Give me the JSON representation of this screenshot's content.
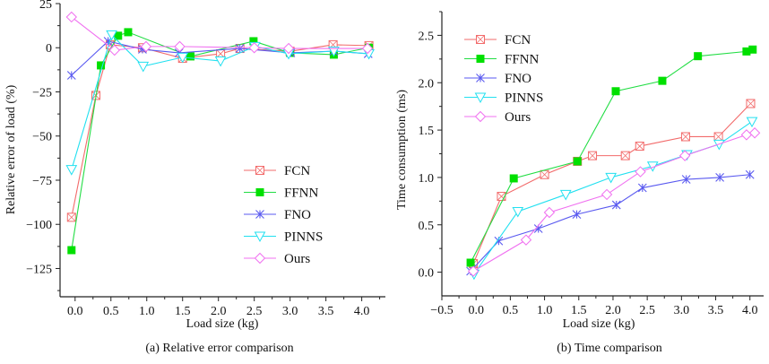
{
  "colors": {
    "FCN": "#f26b6b",
    "FFNN": "#22dd44",
    "FNO": "#5a5af0",
    "PINNS": "#22e0f0",
    "Ours": "#f070f0"
  },
  "marker_colors": {
    "FFNN": "#00e000"
  },
  "chart_data": [
    {
      "type": "line",
      "caption": "(a) Relative error comparison",
      "xlabel": "Load size (kg)",
      "ylabel": "Relative error of load (%)",
      "xlim": [
        -0.21,
        4.33
      ],
      "ylim": [
        -141,
        25
      ],
      "xticks": [
        "0.0",
        "0.5",
        "1.0",
        "1.5",
        "2.0",
        "2.5",
        "3.0",
        "3.5",
        "4.0"
      ],
      "yticks": [
        "25",
        "0",
        "−25",
        "−50",
        "−75",
        "−100",
        "−125"
      ],
      "legend": "center-right",
      "series": [
        {
          "name": "FCN",
          "x": [
            -0.05,
            0.29,
            0.49,
            0.94,
            1.5,
            2.03,
            2.3,
            3.0,
            3.6,
            4.1
          ],
          "y": [
            -96,
            -27,
            1.7,
            0,
            -6,
            -3.4,
            -0.4,
            -2,
            1.7,
            1.2
          ]
        },
        {
          "name": "FFNN",
          "x": [
            -0.05,
            0.36,
            0.6,
            0.74,
            1.61,
            2.49,
            3.0,
            3.61,
            4.1
          ],
          "y": [
            -114.6,
            -10,
            6.8,
            8.8,
            -4.9,
            3.7,
            -2.9,
            -3.9,
            0
          ]
        },
        {
          "name": "FNO",
          "x": [
            -0.05,
            0.46,
            0.94,
            1.45,
            2.3,
            3.01,
            3.61,
            4.09
          ],
          "y": [
            -15.6,
            3.7,
            -0.9,
            -2.9,
            -0.4,
            -2.9,
            -1.9,
            -3.4
          ]
        },
        {
          "name": "PINNS",
          "x": [
            -0.05,
            0.51,
            0.95,
            1.5,
            2.03,
            2.51,
            2.98,
            3.61,
            4.1
          ],
          "y": [
            -69,
            7.3,
            -10.5,
            -5.4,
            -7.5,
            0.7,
            -3.4,
            -1.9,
            -3.4
          ]
        },
        {
          "name": "Ours",
          "x": [
            -0.05,
            0.55,
            0.99,
            1.46,
            2.5,
            2.98,
            4.08
          ],
          "y": [
            17.4,
            -1.4,
            0.7,
            0.7,
            0,
            -0.4,
            -0.4
          ]
        }
      ]
    },
    {
      "type": "line",
      "caption": "(b) Time comparison",
      "xlabel": "Load size (kg)",
      "ylabel": "Time consumption (ms)",
      "xlim": [
        -0.5,
        4.2
      ],
      "ylim": [
        -0.25,
        2.75
      ],
      "xticks": [
        "−0.5",
        "0.0",
        "0.5",
        "1.0",
        "1.5",
        "2.0",
        "2.5",
        "3.0",
        "3.5",
        "4.0"
      ],
      "yticks": [
        "0.0",
        "0.5",
        "1.0",
        "1.5",
        "2.0",
        "2.5"
      ],
      "legend": "top-left",
      "series": [
        {
          "name": "FCN",
          "x": [
            -0.04,
            0.37,
            1.0,
            1.48,
            1.7,
            2.18,
            2.39,
            3.06,
            3.54,
            4.01
          ],
          "y": [
            0.09,
            0.8,
            1.03,
            1.17,
            1.23,
            1.23,
            1.33,
            1.43,
            1.43,
            1.78
          ]
        },
        {
          "name": "FFNN",
          "x": [
            -0.08,
            0.55,
            1.48,
            2.04,
            2.72,
            3.24,
            3.95,
            4.04
          ],
          "y": [
            0.1,
            0.99,
            1.17,
            1.91,
            2.02,
            2.28,
            2.33,
            2.35
          ]
        },
        {
          "name": "FNO",
          "x": [
            -0.08,
            0.33,
            0.91,
            1.47,
            2.05,
            2.43,
            3.07,
            3.56,
            4.0
          ],
          "y": [
            0.01,
            0.33,
            0.46,
            0.61,
            0.71,
            0.89,
            0.98,
            1.0,
            1.03
          ]
        },
        {
          "name": "PINNS",
          "x": [
            -0.03,
            0.61,
            1.31,
            1.97,
            2.58,
            3.08,
            3.55,
            4.03
          ],
          "y": [
            -0.02,
            0.64,
            0.82,
            1.0,
            1.12,
            1.24,
            1.35,
            1.59
          ]
        },
        {
          "name": "Ours",
          "x": [
            -0.04,
            0.73,
            1.07,
            1.91,
            2.4,
            3.05,
            3.95,
            4.07
          ],
          "y": [
            0.01,
            0.34,
            0.63,
            0.82,
            1.06,
            1.23,
            1.45,
            1.47
          ]
        }
      ]
    }
  ]
}
